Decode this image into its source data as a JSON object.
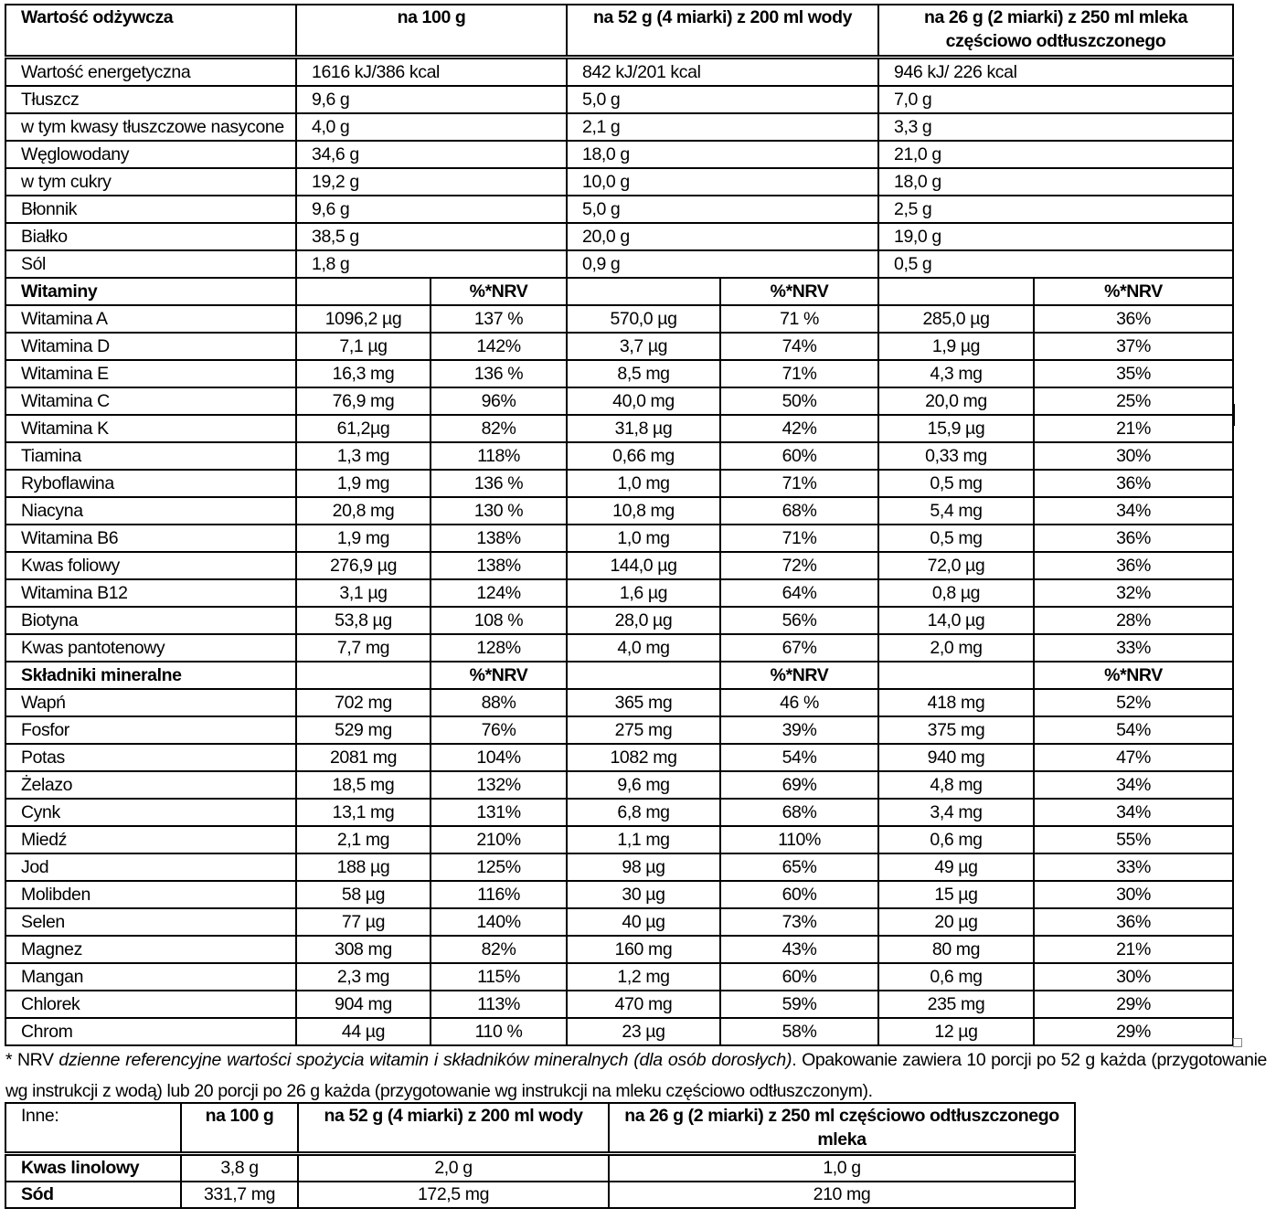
{
  "main_table": {
    "headers": [
      "Wartość odżywcza",
      "na 100 g",
      "na 52 g (4 miarki) z 200 ml wody",
      "na 26 g (2 miarki) z 250 ml mleka częściowo odtłuszczonego"
    ],
    "basic_rows": [
      [
        "Wartość energetyczna",
        "1616 kJ/386 kcal",
        "842 kJ/201 kcal",
        "946 kJ/ 226 kcal"
      ],
      [
        "Tłuszcz",
        "9,6 g",
        "5,0 g",
        "7,0 g"
      ],
      [
        "w tym kwasy tłuszczowe nasycone",
        "4,0 g",
        "2,1 g",
        "3,3 g"
      ],
      [
        "Węglowodany",
        "34,6 g",
        "18,0 g",
        "21,0 g"
      ],
      [
        "w tym cukry",
        "19,2 g",
        "10,0 g",
        "18,0 g"
      ],
      [
        "Błonnik",
        "9,6 g",
        "5,0 g",
        "2,5 g"
      ],
      [
        "Białko",
        "38,5 g",
        "20,0 g",
        "19,0 g"
      ],
      [
        "Sól",
        "1,8 g",
        "0,9 g",
        "0,5 g"
      ]
    ],
    "vitamins_header": "Witaminy",
    "minerals_header": "Składniki mineralne",
    "nrv_label": "%*NRV",
    "vitamin_rows": [
      [
        "Witamina A",
        "1096,2 µg",
        "137 %",
        "570,0 µg",
        "71 %",
        "285,0 µg",
        "36%"
      ],
      [
        "Witamina D",
        "7,1 µg",
        "142%",
        "3,7 µg",
        "74%",
        "1,9 µg",
        "37%"
      ],
      [
        "Witamina E",
        "16,3 mg",
        "136 %",
        "8,5 mg",
        "71%",
        "4,3 mg",
        "35%"
      ],
      [
        "Witamina C",
        "76,9 mg",
        "96%",
        "40,0 mg",
        "50%",
        "20,0 mg",
        "25%"
      ],
      [
        "Witamina K",
        "61,2µg",
        "82%",
        "31,8 µg",
        "42%",
        "15,9 µg",
        "21%"
      ],
      [
        "Tiamina",
        "1,3 mg",
        "118%",
        "0,66 mg",
        "60%",
        "0,33 mg",
        "30%"
      ],
      [
        "Ryboflawina",
        "1,9 mg",
        "136 %",
        "1,0 mg",
        "71%",
        "0,5 mg",
        "36%"
      ],
      [
        "Niacyna",
        "20,8 mg",
        "130 %",
        "10,8 mg",
        "68%",
        "5,4 mg",
        "34%"
      ],
      [
        "Witamina B6",
        "1,9 mg",
        "138%",
        "1,0 mg",
        "71%",
        "0,5 mg",
        "36%"
      ],
      [
        "Kwas foliowy",
        "276,9 µg",
        "138%",
        "144,0 µg",
        "72%",
        "72,0 µg",
        "36%"
      ],
      [
        "Witamina B12",
        "3,1 µg",
        "124%",
        "1,6 µg",
        "64%",
        "0,8 µg",
        "32%"
      ],
      [
        "Biotyna",
        "53,8 µg",
        "108 %",
        "28,0 µg",
        "56%",
        "14,0 µg",
        "28%"
      ],
      [
        "Kwas pantotenowy",
        "7,7 mg",
        "128%",
        "4,0 mg",
        "67%",
        "2,0 mg",
        "33%"
      ]
    ],
    "mineral_rows": [
      [
        "Wapń",
        "702 mg",
        "88%",
        "365 mg",
        "46 %",
        "418 mg",
        "52%"
      ],
      [
        "Fosfor",
        "529 mg",
        "76%",
        "275 mg",
        "39%",
        "375 mg",
        "54%"
      ],
      [
        "Potas",
        "2081 mg",
        "104%",
        "1082 mg",
        "54%",
        "940 mg",
        "47%"
      ],
      [
        "Żelazo",
        "18,5 mg",
        "132%",
        "9,6 mg",
        "69%",
        "4,8 mg",
        "34%"
      ],
      [
        "Cynk",
        "13,1 mg",
        "131%",
        "6,8 mg",
        "68%",
        "3,4 mg",
        "34%"
      ],
      [
        "Miedź",
        "2,1 mg",
        "210%",
        "1,1 mg",
        "110%",
        "0,6 mg",
        "55%"
      ],
      [
        "Jod",
        "188 µg",
        "125%",
        "98 µg",
        "65%",
        "49 µg",
        "33%"
      ],
      [
        "Molibden",
        "58 µg",
        "116%",
        "30 µg",
        "60%",
        "15 µg",
        "30%"
      ],
      [
        "Selen",
        "77 µg",
        "140%",
        "40 µg",
        "73%",
        "20 µg",
        "36%"
      ],
      [
        "Magnez",
        "308 mg",
        "82%",
        "160 mg",
        "43%",
        "80 mg",
        "21%"
      ],
      [
        "Mangan",
        "2,3 mg",
        "115%",
        "1,2 mg",
        "60%",
        "0,6 mg",
        "30%"
      ],
      [
        "Chlorek",
        "904 mg",
        "113%",
        "470 mg",
        "59%",
        "235 mg",
        "29%"
      ],
      [
        "Chrom",
        "44 µg",
        "110 %",
        "23 µg",
        "58%",
        "12 µg",
        "29%"
      ]
    ]
  },
  "footnote": {
    "prefix": "* NRV ",
    "italic": "dzienne referencyjne wartości spożycia witamin i składników mineralnych (dla osób dorosłych)",
    "rest": ". Opakowanie zawiera 10 porcji po 52 g każda (przygotowanie wg instrukcji z wodą) lub 20 porcji po 26 g każda (przygotowanie wg instrukcji na mleku częściowo odtłuszczonym)."
  },
  "other_table": {
    "headers": [
      "Inne:",
      "na 100 g",
      "na 52 g (4 miarki) z 200 ml wody",
      "na 26 g (2 miarki) z 250 ml częściowo odtłuszczonego mleka"
    ],
    "rows": [
      [
        "Kwas linolowy",
        "3,8 g",
        "2,0 g",
        "1,0 g"
      ],
      [
        "Sód",
        "331,7 mg",
        "172,5 mg",
        "210 mg"
      ]
    ]
  }
}
